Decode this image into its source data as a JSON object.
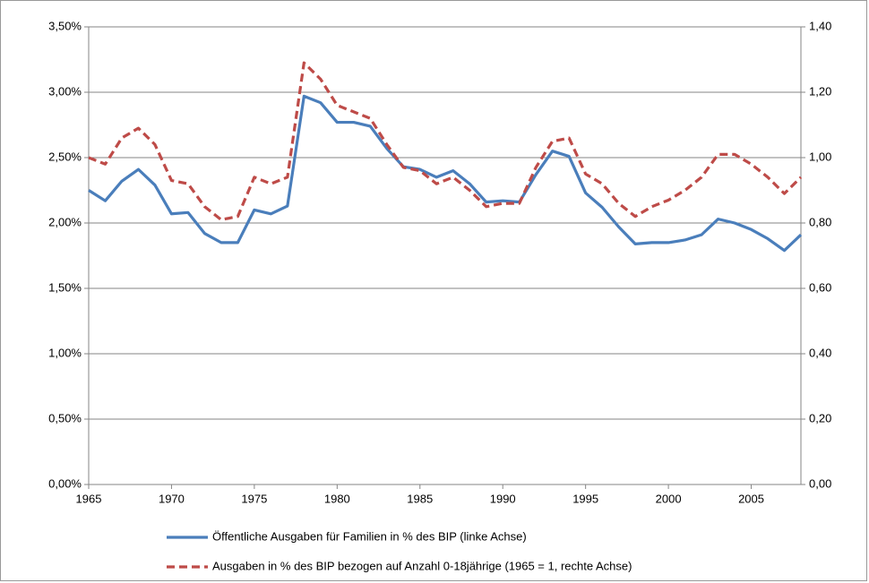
{
  "chart_data": {
    "type": "line",
    "x": [
      1965,
      1966,
      1967,
      1968,
      1969,
      1970,
      1971,
      1972,
      1973,
      1974,
      1975,
      1976,
      1977,
      1978,
      1979,
      1980,
      1981,
      1982,
      1983,
      1984,
      1985,
      1986,
      1987,
      1988,
      1989,
      1990,
      1991,
      1992,
      1993,
      1994,
      1995,
      1996,
      1997,
      1998,
      1999,
      2000,
      2001,
      2002,
      2003,
      2004,
      2005,
      2006,
      2007,
      2008
    ],
    "xlim": [
      1965,
      2008
    ],
    "xticks": [
      1965,
      1970,
      1975,
      1980,
      1985,
      1990,
      1995,
      2000,
      2005
    ],
    "ylim": [
      0,
      3.5
    ],
    "yticks": [
      {
        "value": 0,
        "label": "0,00%"
      },
      {
        "value": 0.5,
        "label": "0,50%"
      },
      {
        "value": 1,
        "label": "1,00%"
      },
      {
        "value": 1.5,
        "label": "1,50%"
      },
      {
        "value": 2,
        "label": "2,00%"
      },
      {
        "value": 2.5,
        "label": "2,50%"
      },
      {
        "value": 3,
        "label": "3,00%"
      },
      {
        "value": 3.5,
        "label": "3,50%"
      }
    ],
    "y2lim": [
      0,
      1.4
    ],
    "y2ticks": [
      {
        "value": 0,
        "label": "0,00"
      },
      {
        "value": 0.2,
        "label": "0,20"
      },
      {
        "value": 0.4,
        "label": "0,40"
      },
      {
        "value": 0.6,
        "label": "0,60"
      },
      {
        "value": 0.8,
        "label": "0,80"
      },
      {
        "value": 1,
        "label": "1,00"
      },
      {
        "value": 1.2,
        "label": "1,20"
      },
      {
        "value": 1.4,
        "label": "1,40"
      }
    ],
    "grid": true,
    "series": [
      {
        "name": "Öffentliche Ausgaben für Familien in % des BIP (linke Achse)",
        "color": "#4a7ebb",
        "dash": false,
        "values": [
          2.25,
          2.17,
          2.32,
          2.41,
          2.29,
          2.07,
          2.08,
          1.92,
          1.85,
          1.85,
          2.1,
          2.07,
          2.13,
          2.97,
          2.92,
          2.77,
          2.77,
          2.74,
          2.57,
          2.43,
          2.41,
          2.35,
          2.4,
          2.3,
          2.16,
          2.17,
          2.16,
          2.37,
          2.55,
          2.51,
          2.23,
          2.12,
          1.97,
          1.84,
          1.85,
          1.85,
          1.87,
          1.91,
          2.03,
          2.0,
          1.95,
          1.88,
          1.79,
          1.91
        ]
      },
      {
        "name": "Ausgaben in % des BIP bezogen auf Anzahl 0-18jährige (1965 = 1, rechte Achse)",
        "color": "#be4b48",
        "dash": true,
        "axis": "y2",
        "values": [
          1.0,
          0.98,
          1.06,
          1.09,
          1.04,
          0.93,
          0.92,
          0.85,
          0.81,
          0.82,
          0.94,
          0.92,
          0.94,
          1.29,
          1.24,
          1.16,
          1.14,
          1.12,
          1.04,
          0.97,
          0.96,
          0.92,
          0.94,
          0.9,
          0.85,
          0.86,
          0.86,
          0.97,
          1.05,
          1.06,
          0.95,
          0.92,
          0.86,
          0.82,
          0.85,
          0.87,
          0.9,
          0.94,
          1.01,
          1.01,
          0.98,
          0.94,
          0.89,
          0.94
        ]
      }
    ]
  }
}
